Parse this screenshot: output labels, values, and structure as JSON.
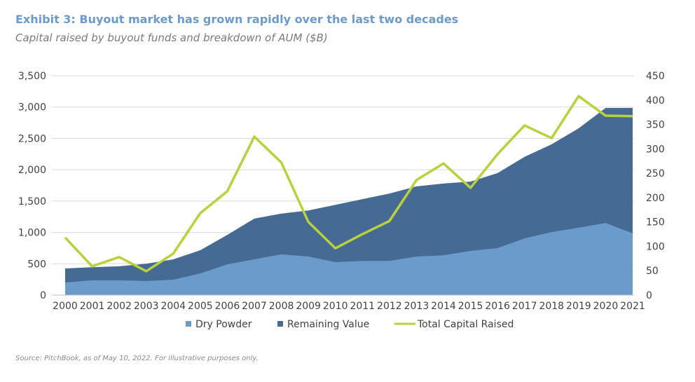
{
  "chart_data": {
    "type": "area",
    "title": "Exhibit 3: Buyout market has grown rapidly over the last two decades",
    "subtitle": "Capital raised by buyout funds and breakdown of AUM ($B)",
    "source": "Source: PitchBook, as of May 10, 2022. For illustrative purposes only.",
    "categories": [
      "2000",
      "2001",
      "2002",
      "2003",
      "2004",
      "2005",
      "2006",
      "2007",
      "2008",
      "2009",
      "2010",
      "2011",
      "2012",
      "2013",
      "2014",
      "2015",
      "2016",
      "2017",
      "2018",
      "2019",
      "2020",
      "2021"
    ],
    "left_axis": {
      "range": [
        0,
        3500
      ],
      "ticks": [
        "0",
        "500",
        "1,000",
        "1,500",
        "2,000",
        "2,500",
        "3,000",
        "3,500"
      ]
    },
    "right_axis": {
      "range": [
        0,
        450
      ],
      "ticks": [
        "0",
        "50",
        "100",
        "150",
        "200",
        "250",
        "300",
        "350",
        "400",
        "450"
      ]
    },
    "grid": true,
    "legend_position": "bottom",
    "series": [
      {
        "name": "Dry Powder",
        "type": "stacked-area",
        "axis": "left",
        "color": "#6b9bcb",
        "values": [
          200,
          235,
          235,
          225,
          245,
          345,
          490,
          570,
          650,
          615,
          525,
          545,
          545,
          615,
          635,
          705,
          750,
          905,
          1005,
          1075,
          1150,
          985
        ]
      },
      {
        "name": "Remaining Value",
        "type": "stacked-area",
        "axis": "left",
        "color": "#456a94",
        "values": [
          225,
          210,
          225,
          275,
          325,
          370,
          470,
          650,
          650,
          735,
          915,
          985,
          1075,
          1120,
          1145,
          1105,
          1195,
          1300,
          1400,
          1585,
          1835,
          2000
        ]
      },
      {
        "name": "Total Capital Raised",
        "type": "line",
        "axis": "right",
        "color": "#b9d13b",
        "values": [
          118,
          59,
          78,
          49,
          85,
          168,
          213,
          325,
          272,
          150,
          96,
          125,
          152,
          236,
          270,
          220,
          289,
          348,
          322,
          408,
          368,
          367
        ]
      }
    ]
  }
}
